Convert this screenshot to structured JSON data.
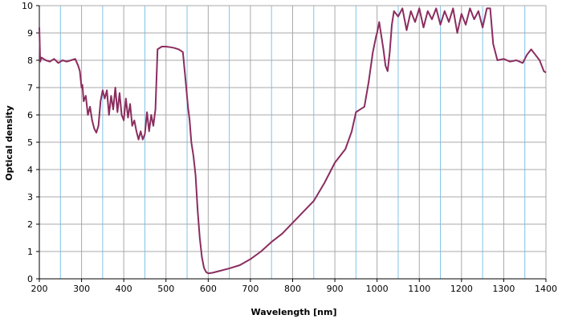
{
  "chart_data": {
    "type": "line",
    "title": "",
    "xlabel": "Wavelength [nm]",
    "ylabel": "Optical density",
    "xlim": [
      200,
      1400
    ],
    "ylim": [
      0,
      10
    ],
    "x_ticks": [
      200,
      300,
      400,
      500,
      600,
      700,
      800,
      900,
      1000,
      1100,
      1200,
      1300,
      1400
    ],
    "y_ticks": [
      0,
      1,
      2,
      3,
      4,
      5,
      6,
      7,
      8,
      9,
      10
    ],
    "x_minor_step": 50,
    "grid": true,
    "legend": "none",
    "colors": {
      "line": "#8B2D5F",
      "major_grid": "#a9a9a9",
      "minor_grid": "#7fc4e8",
      "axis": "#000000"
    },
    "series": [
      {
        "x": [
          200,
          202,
          205,
          215,
          225,
          235,
          245,
          255,
          265,
          275,
          285,
          292,
          296,
          300,
          302,
          305,
          310,
          315,
          320,
          325,
          330,
          335,
          340,
          345,
          350,
          355,
          360,
          365,
          370,
          375,
          380,
          385,
          390,
          395,
          400,
          405,
          410,
          415,
          420,
          425,
          430,
          435,
          440,
          445,
          450,
          455,
          460,
          465,
          470,
          475,
          480,
          490,
          500,
          510,
          520,
          530,
          540,
          548,
          552,
          556,
          560,
          565,
          570,
          575,
          580,
          585,
          590,
          595,
          600,
          610,
          625,
          650,
          675,
          700,
          725,
          750,
          775,
          800,
          825,
          850,
          875,
          900,
          925,
          940,
          950,
          960,
          970,
          980,
          990,
          998,
          1000,
          1005,
          1010,
          1015,
          1020,
          1025,
          1030,
          1035,
          1040,
          1050,
          1060,
          1070,
          1080,
          1090,
          1100,
          1110,
          1120,
          1130,
          1140,
          1150,
          1160,
          1170,
          1180,
          1190,
          1200,
          1210,
          1220,
          1230,
          1240,
          1250,
          1260,
          1268,
          1275,
          1285,
          1300,
          1315,
          1330,
          1345,
          1355,
          1365,
          1375,
          1385,
          1390,
          1395,
          1400
        ],
        "y": [
          9.2,
          7.95,
          8.1,
          8.0,
          7.95,
          8.05,
          7.9,
          8.0,
          7.95,
          8.0,
          8.05,
          7.8,
          7.6,
          7.0,
          7.1,
          6.5,
          6.7,
          6.0,
          6.3,
          5.8,
          5.5,
          5.35,
          5.6,
          6.5,
          6.9,
          6.6,
          6.9,
          6.0,
          6.7,
          6.2,
          7.0,
          6.1,
          6.8,
          6.0,
          5.8,
          6.6,
          5.9,
          6.4,
          5.6,
          5.8,
          5.4,
          5.1,
          5.4,
          5.1,
          5.3,
          6.1,
          5.4,
          6.0,
          5.6,
          6.2,
          8.4,
          8.5,
          8.5,
          8.48,
          8.45,
          8.4,
          8.3,
          7.0,
          6.3,
          5.8,
          5.0,
          4.5,
          3.8,
          2.5,
          1.5,
          0.8,
          0.4,
          0.25,
          0.2,
          0.22,
          0.28,
          0.38,
          0.5,
          0.72,
          1.0,
          1.35,
          1.65,
          2.05,
          2.45,
          2.85,
          3.5,
          4.25,
          4.75,
          5.4,
          6.1,
          6.2,
          6.3,
          7.2,
          8.3,
          8.9,
          9.0,
          9.4,
          8.9,
          8.4,
          7.8,
          7.6,
          8.3,
          9.3,
          9.8,
          9.6,
          9.9,
          9.1,
          9.8,
          9.4,
          9.9,
          9.2,
          9.8,
          9.5,
          9.9,
          9.3,
          9.8,
          9.4,
          9.9,
          9.0,
          9.7,
          9.3,
          9.9,
          9.5,
          9.8,
          9.2,
          9.9,
          9.9,
          8.6,
          8.0,
          8.05,
          7.95,
          8.0,
          7.9,
          8.2,
          8.4,
          8.2,
          8.0,
          7.8,
          7.6,
          7.55
        ]
      }
    ]
  }
}
